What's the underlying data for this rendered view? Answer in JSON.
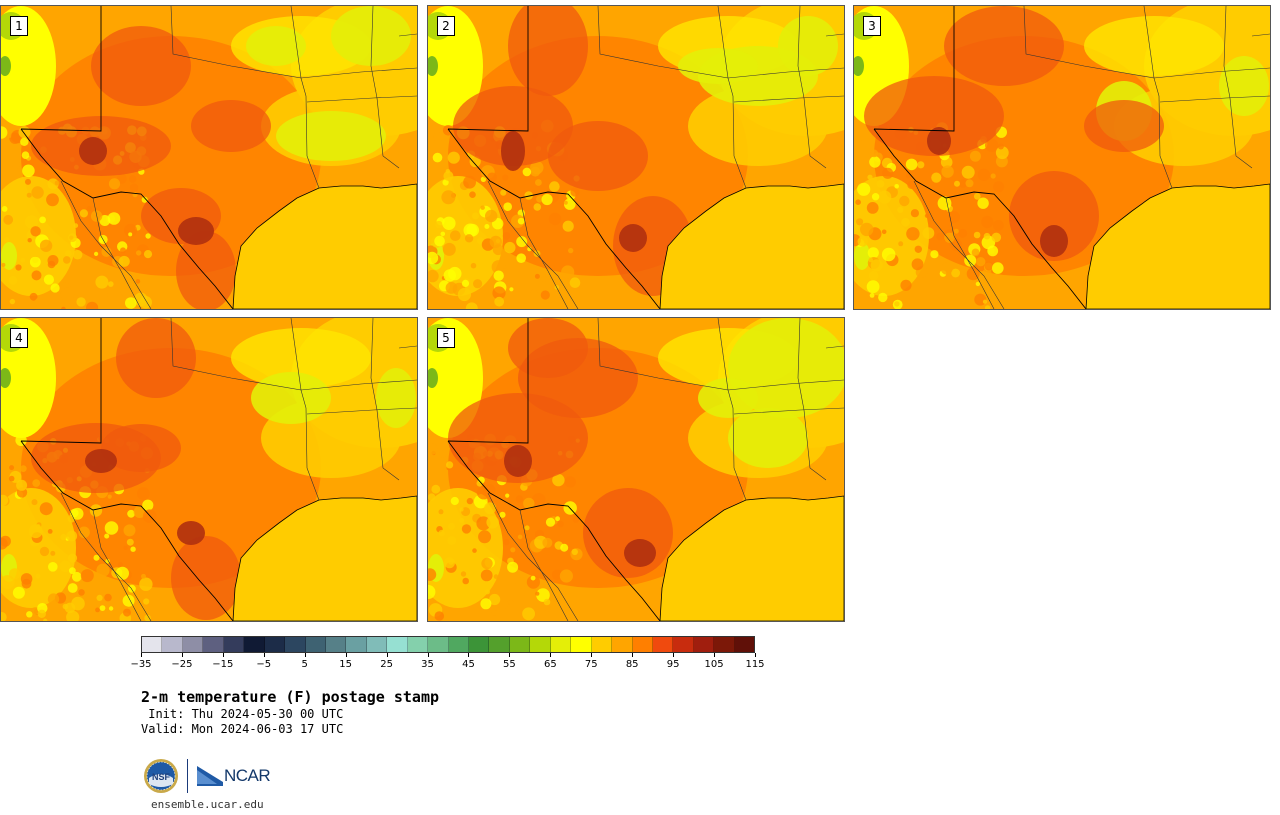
{
  "panels": [
    {
      "label": "1",
      "variant": 0
    },
    {
      "label": "2",
      "variant": 1
    },
    {
      "label": "3",
      "variant": 2
    },
    {
      "label": "4",
      "variant": 3
    },
    {
      "label": "5",
      "variant": 4
    }
  ],
  "colorbar": {
    "colors": [
      "#e4e4ec",
      "#b8b8cc",
      "#8e8ea6",
      "#5e6080",
      "#343c5c",
      "#101a34",
      "#1c2c48",
      "#2c4660",
      "#3e6272",
      "#568088",
      "#6aa0a2",
      "#80bcb8",
      "#96e0d2",
      "#84d0ac",
      "#6cbc88",
      "#50a860",
      "#3c9438",
      "#54a02c",
      "#7cb818",
      "#b4d808",
      "#e4ee08",
      "#ffff00",
      "#ffcc00",
      "#ffa500",
      "#ff7f00",
      "#f04a0e",
      "#c82c0e",
      "#a01e0e",
      "#7c1808",
      "#601008"
    ],
    "tick_labels": [
      "−35",
      "−25",
      "−15",
      "−5",
      "5",
      "15",
      "25",
      "35",
      "45",
      "55",
      "65",
      "75",
      "85",
      "95",
      "105",
      "115"
    ]
  },
  "title": "2-m temperature (F) postage stamp",
  "init_line": " Init: Thu 2024-05-30 00 UTC",
  "valid_line": "Valid: Mon 2024-06-03 17 UTC",
  "logos": {
    "left": "NSF",
    "right": "NCAR"
  },
  "site": "ensemble.ucar.edu"
}
